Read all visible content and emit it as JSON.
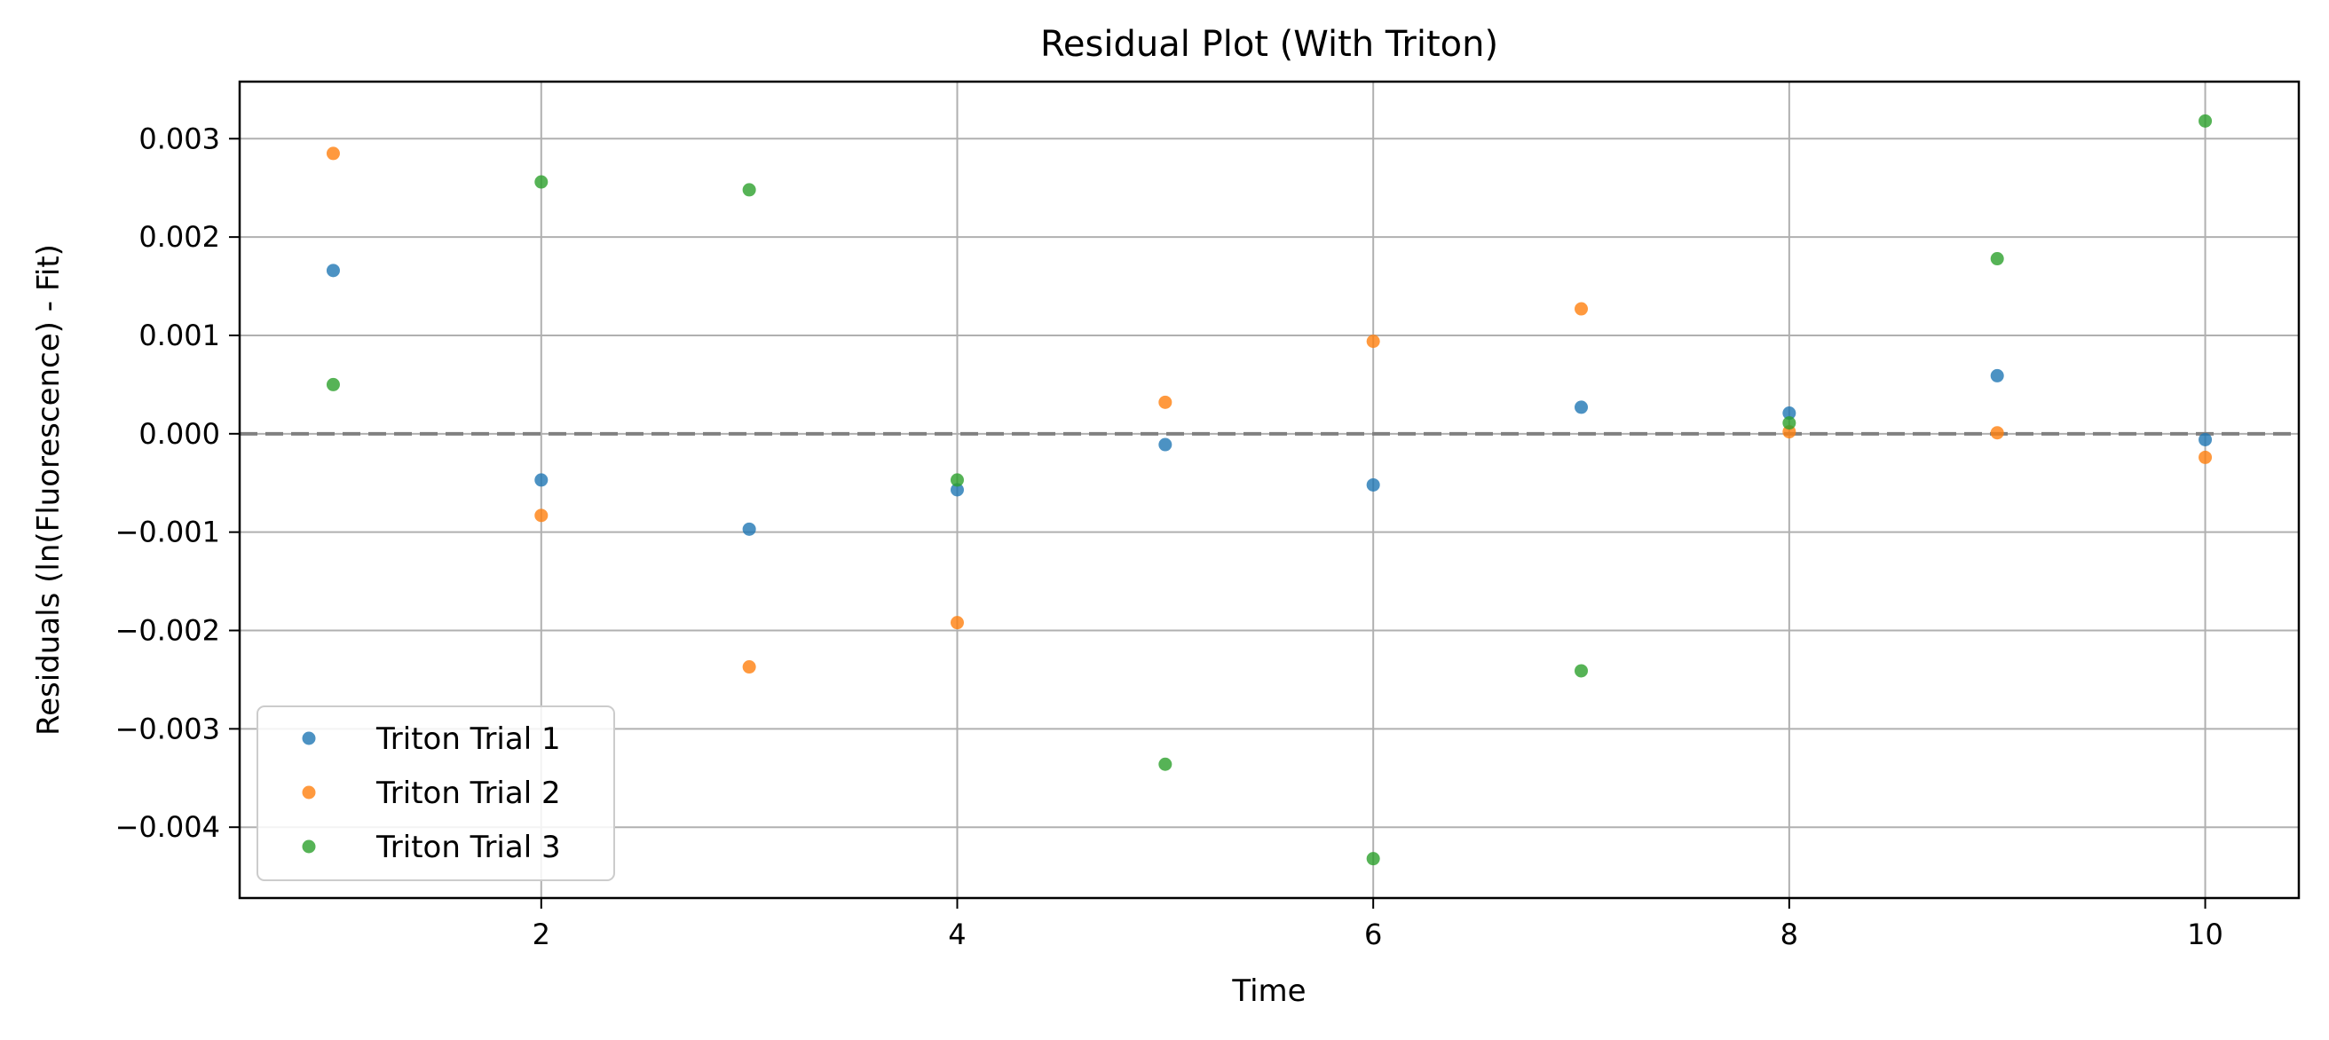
{
  "chart_data": {
    "type": "scatter",
    "title": "Residual Plot (With Triton)",
    "xlabel": "Time",
    "ylabel": "Residuals (ln(Fluorescence) - Fit)",
    "xlim": [
      0.55,
      10.45
    ],
    "ylim": [
      -0.00472,
      0.00358
    ],
    "xticks": [
      2,
      4,
      6,
      8,
      10
    ],
    "xtick_labels": [
      "2",
      "4",
      "6",
      "8",
      "10"
    ],
    "yticks": [
      0.003,
      0.002,
      0.001,
      0.0,
      -0.001,
      -0.002,
      -0.003,
      -0.004
    ],
    "ytick_labels": [
      "0.003",
      "0.002",
      "0.001",
      "0.000",
      "−0.001",
      "−0.002",
      "−0.003",
      "−0.004"
    ],
    "grid": true,
    "reference_line": {
      "y": 0,
      "style": "dashed",
      "color": "#808080"
    },
    "legend_position": "lower-left",
    "x": [
      1,
      2,
      3,
      4,
      5,
      6,
      7,
      8,
      9,
      10
    ],
    "series": [
      {
        "name": "Triton Trial 1",
        "color": "#1f77b4",
        "values": [
          0.00166,
          -0.00047,
          -0.00097,
          -0.00057,
          -0.00011,
          -0.00052,
          0.00027,
          0.00021,
          0.00059,
          -6e-05
        ]
      },
      {
        "name": "Triton Trial 2",
        "color": "#ff7f0e",
        "values": [
          0.00285,
          -0.00083,
          -0.00237,
          -0.00192,
          0.00032,
          0.00094,
          0.00127,
          2e-05,
          1e-05,
          -0.00024
        ]
      },
      {
        "name": "Triton Trial 3",
        "color": "#2ca02c",
        "values": [
          0.0005,
          0.00256,
          0.00248,
          -0.00047,
          -0.00336,
          -0.00432,
          -0.00241,
          0.00011,
          0.00178,
          0.00318
        ]
      }
    ]
  }
}
